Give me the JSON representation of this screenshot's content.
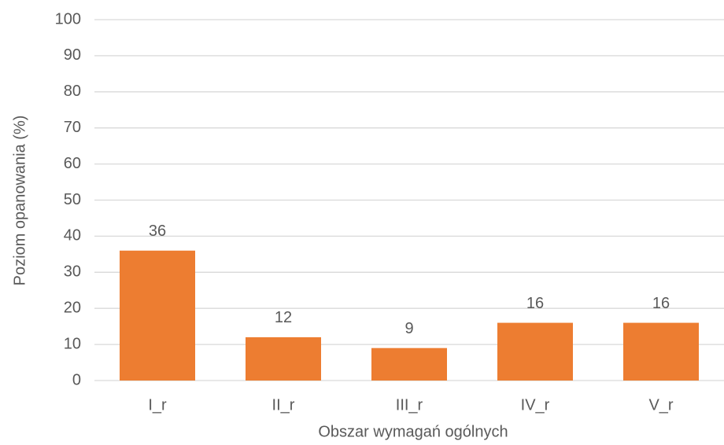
{
  "chart_data": {
    "type": "bar",
    "x_label": "Obszar wymagań ogólnych",
    "y_label": "Poziom opanowania (%)",
    "categories": [
      "I_r",
      "II_r",
      "III_r",
      "IV_r",
      "V_r"
    ],
    "values": [
      36,
      12,
      9,
      16,
      16
    ],
    "color": "#ed7d31",
    "ylim": [
      0,
      100
    ],
    "yticks": [
      0,
      10,
      20,
      30,
      40,
      50,
      60,
      70,
      80,
      90,
      100
    ],
    "grid": true
  }
}
